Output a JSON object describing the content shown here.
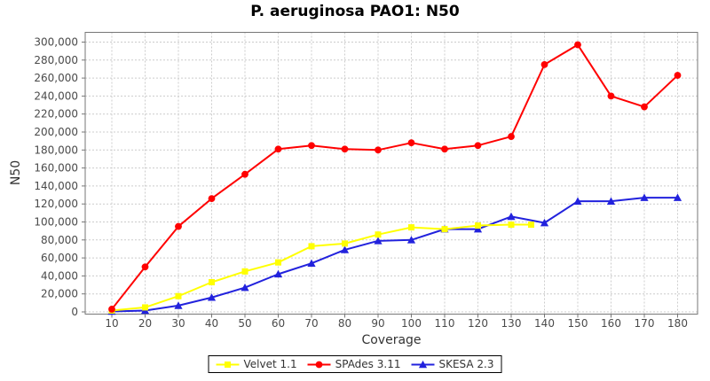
{
  "title": "P. aeruginosa PAO1: N50",
  "chart_data": {
    "type": "line",
    "title": "P. aeruginosa PAO1: N50",
    "xlabel": "Coverage",
    "ylabel": "N50",
    "xlim": [
      2,
      186
    ],
    "ylim": [
      0,
      300000
    ],
    "grid": true,
    "legend_position": "bottom",
    "x_ticks": [
      10,
      20,
      30,
      40,
      50,
      60,
      70,
      80,
      90,
      100,
      110,
      120,
      130,
      140,
      150,
      160,
      170,
      180
    ],
    "y_ticks": [
      {
        "v": 0,
        "label": "0"
      },
      {
        "v": 20000,
        "label": "20,000"
      },
      {
        "v": 40000,
        "label": "40,000"
      },
      {
        "v": 60000,
        "label": "60,000"
      },
      {
        "v": 80000,
        "label": "80,000"
      },
      {
        "v": 100000,
        "label": "100,000"
      },
      {
        "v": 120000,
        "label": "120,000"
      },
      {
        "v": 140000,
        "label": "140,000"
      },
      {
        "v": 160000,
        "label": "160,000"
      },
      {
        "v": 180000,
        "label": "180,000"
      },
      {
        "v": 200000,
        "label": "200,000"
      },
      {
        "v": 220000,
        "label": "220,000"
      },
      {
        "v": 240000,
        "label": "240,000"
      },
      {
        "v": 260000,
        "label": "260,000"
      },
      {
        "v": 280000,
        "label": "280,000"
      },
      {
        "v": 300000,
        "label": "300,000"
      }
    ],
    "series": [
      {
        "name": "Velvet 1.1",
        "color": "#FFFF00",
        "marker": "square",
        "x": [
          10,
          20,
          30,
          40,
          50,
          60,
          70,
          80,
          90,
          100,
          110,
          120,
          130,
          136
        ],
        "values": [
          1500,
          5000,
          17500,
          33000,
          45000,
          55000,
          73000,
          76000,
          86000,
          94000,
          92000,
          96000,
          97000,
          97000
        ]
      },
      {
        "name": "SPAdes 3.11",
        "color": "#FF0000",
        "marker": "circle",
        "x": [
          10,
          20,
          30,
          40,
          50,
          60,
          70,
          80,
          90,
          100,
          110,
          120,
          130,
          140,
          150,
          160,
          170,
          180
        ],
        "values": [
          3000,
          50000,
          95000,
          126000,
          153000,
          181000,
          185000,
          181000,
          180000,
          188000,
          181000,
          185000,
          195000,
          275000,
          297000,
          240000,
          228000,
          263000
        ]
      },
      {
        "name": "SKESA 2.3",
        "color": "#2222DD",
        "marker": "triangle",
        "x": [
          10,
          20,
          30,
          40,
          50,
          60,
          70,
          80,
          90,
          100,
          110,
          120,
          130,
          140,
          150,
          160,
          170,
          180
        ],
        "values": [
          500,
          1500,
          7000,
          16000,
          27000,
          42000,
          54000,
          69000,
          79000,
          80000,
          92000,
          92000,
          106000,
          99000,
          123000,
          123000,
          127000,
          127000
        ]
      }
    ],
    "draw_order": [
      2,
      0,
      1
    ]
  },
  "style": {
    "background": "#ffffff",
    "gridline_color": "#cccccc",
    "axis_color": "#777777",
    "tick_label_color": "#4a4a4a"
  }
}
